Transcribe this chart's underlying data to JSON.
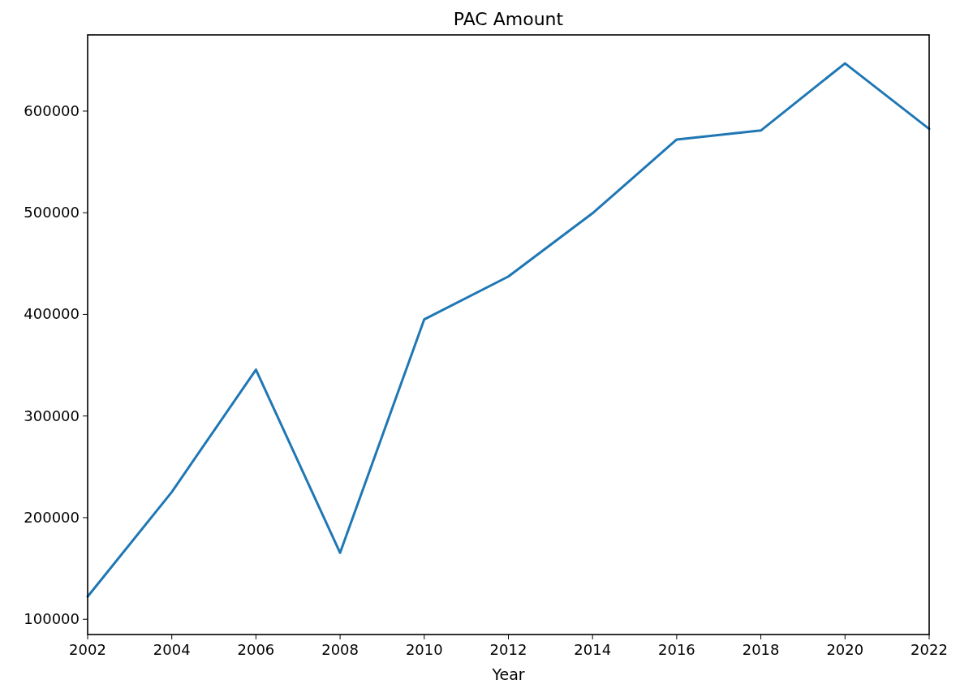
{
  "chart_data": {
    "type": "line",
    "title": "PAC Amount",
    "xlabel": "Year",
    "x": [
      2002,
      2004,
      2006,
      2008,
      2010,
      2012,
      2014,
      2016,
      2018,
      2020,
      2022
    ],
    "series": [
      {
        "color": "#1f77b4",
        "values": [
          122300,
          225200,
          345600,
          165400,
          395100,
          437300,
          499500,
          572100,
          580900,
          647000,
          582500
        ]
      }
    ],
    "xlim": [
      2002,
      2022
    ],
    "xticks": [
      2002,
      2004,
      2006,
      2008,
      2010,
      2012,
      2014,
      2016,
      2018,
      2020,
      2022
    ],
    "ylim": [
      85000,
      675000
    ],
    "yticks": [
      100000,
      200000,
      300000,
      400000,
      500000,
      600000
    ],
    "grid": false,
    "marker": "none",
    "line_style": "solid"
  }
}
